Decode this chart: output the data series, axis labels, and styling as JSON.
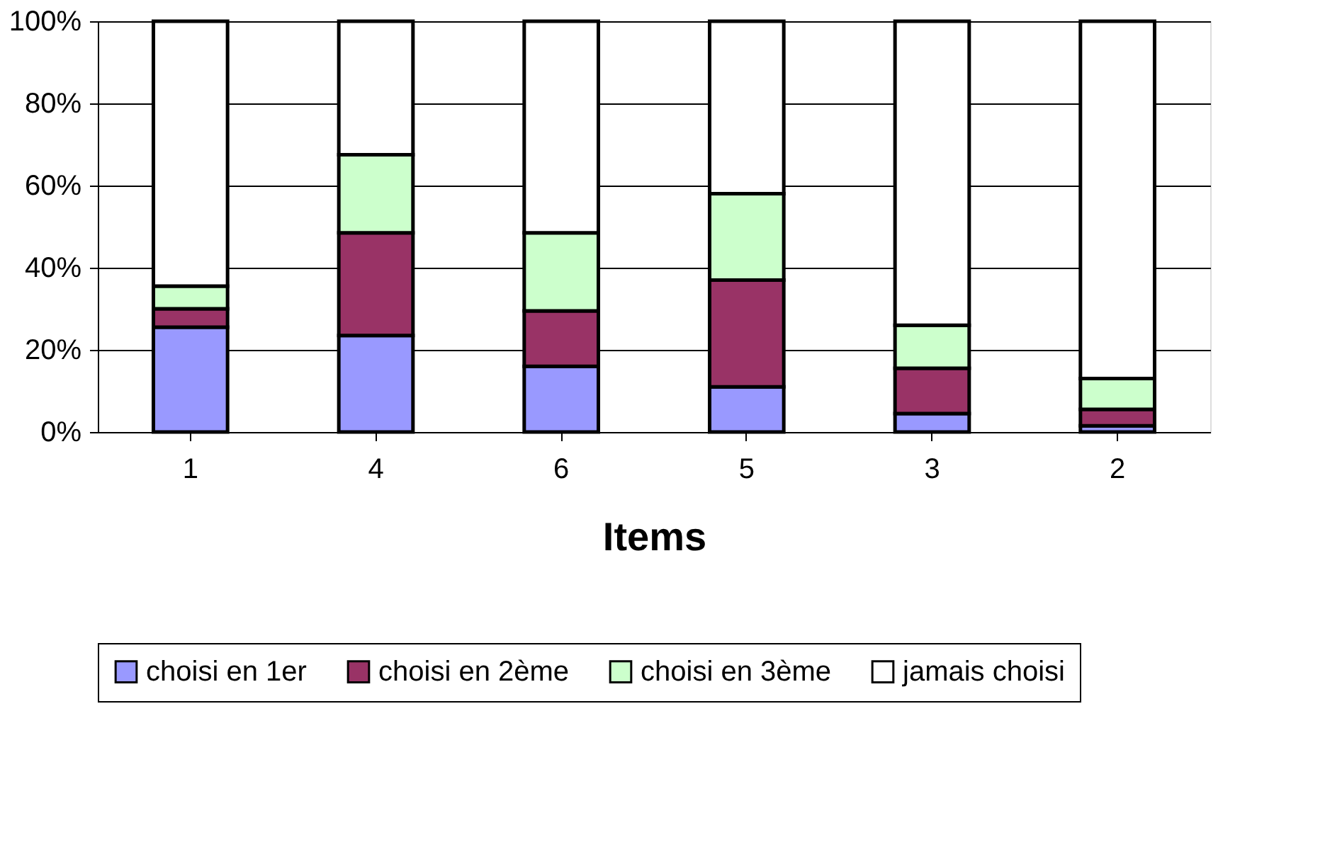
{
  "chart_data": {
    "type": "bar",
    "stacked": true,
    "xlabel": "Items",
    "categories": [
      "1",
      "4",
      "6",
      "5",
      "3",
      "2"
    ],
    "series": [
      {
        "name": "choisi en 1er",
        "color": "#9999ff",
        "values": [
          25.5,
          23.5,
          16,
          11,
          4.5,
          1.5
        ]
      },
      {
        "name": "choisi en 2ème",
        "color": "#993366",
        "values": [
          4.5,
          25,
          13.5,
          26,
          11,
          4
        ]
      },
      {
        "name": "choisi en 3ème",
        "color": "#ccffcc",
        "values": [
          5.5,
          19,
          19,
          21,
          10.5,
          7.5
        ]
      },
      {
        "name": "jamais choisi",
        "color": "#ffffff",
        "values": [
          64.5,
          32.5,
          51.5,
          42,
          74,
          87
        ]
      }
    ],
    "ylim": [
      0,
      100
    ],
    "yticks": [
      {
        "value": 0,
        "label": "0%"
      },
      {
        "value": 20,
        "label": "20%"
      },
      {
        "value": 40,
        "label": "40%"
      },
      {
        "value": 60,
        "label": "60%"
      },
      {
        "value": 80,
        "label": "80%"
      },
      {
        "value": 100,
        "label": "100%"
      }
    ],
    "grid": "y",
    "legend": "bottom"
  }
}
